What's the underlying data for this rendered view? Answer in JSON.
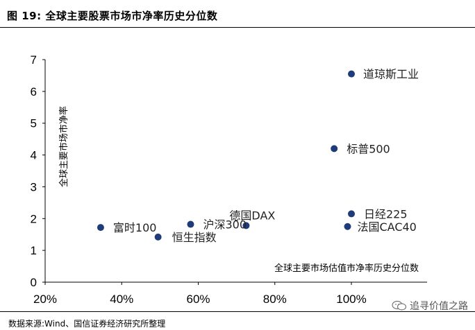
{
  "figure": {
    "title": "图 19:  全球主要股票市场市净率历史分位数",
    "source": "数据来源:Wind、国信证券经济研究所整理",
    "watermark": "追寻价值之路"
  },
  "chart_data": {
    "type": "scatter",
    "xlabel": "全球主要市场估值市净率历史分位数",
    "ylabel": "全球主要市场市净率",
    "xlim": [
      0.2,
      1.0
    ],
    "ylim": [
      0,
      7
    ],
    "xticks": [
      0.2,
      0.4,
      0.6,
      0.8,
      1.0
    ],
    "xtick_labels": [
      "20%",
      "40%",
      "60%",
      "80%",
      "100%"
    ],
    "yticks": [
      0,
      1,
      2,
      3,
      4,
      5,
      6,
      7
    ],
    "ytick_labels": [
      "0",
      "1",
      "2",
      "3",
      "4",
      "5",
      "6",
      "7"
    ],
    "grid": false,
    "marker_color": "#1f3b7a",
    "points": [
      {
        "label": "道琼斯工业",
        "x": 1.0,
        "y": 6.55
      },
      {
        "label": "标普500",
        "x": 0.955,
        "y": 4.2
      },
      {
        "label": "日经225",
        "x": 1.0,
        "y": 2.15
      },
      {
        "label": "法国CAC40",
        "x": 0.99,
        "y": 1.75
      },
      {
        "label": "德国DAX",
        "x": 0.725,
        "y": 1.78
      },
      {
        "label": "沪深300",
        "x": 0.58,
        "y": 1.82
      },
      {
        "label": "富时100",
        "x": 0.345,
        "y": 1.72
      },
      {
        "label": "恒生指数",
        "x": 0.495,
        "y": 1.42
      }
    ]
  }
}
